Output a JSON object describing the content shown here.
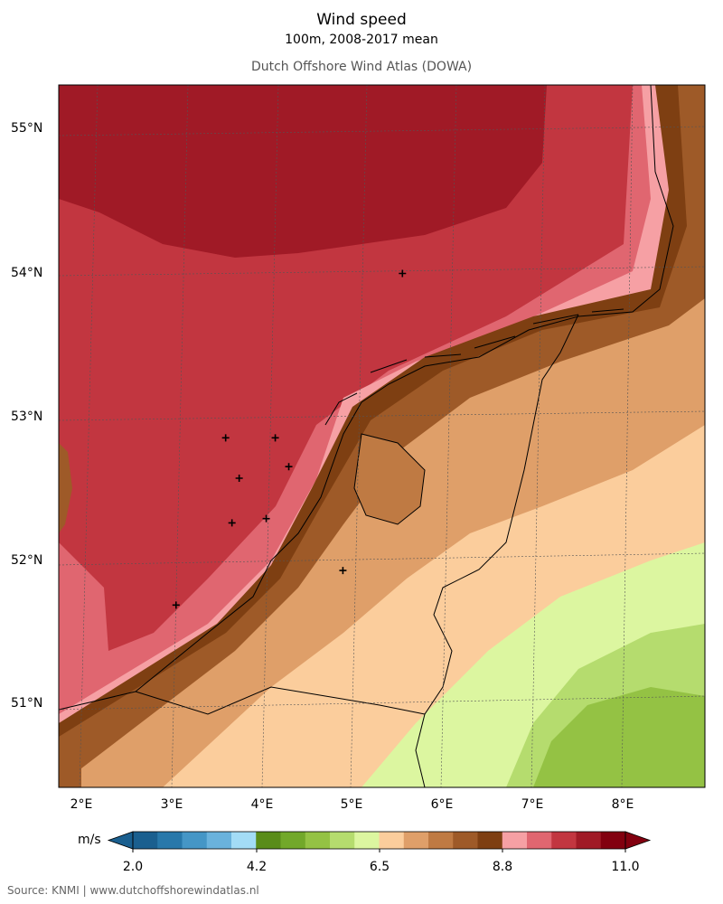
{
  "title": "Wind speed",
  "subtitle": "100m, 2008-2017 mean",
  "source_title": "Dutch Offshore Wind Atlas (DOWA)",
  "footer": "Source: KNMI | www.dutchoffshorewindatlas.nl",
  "axes": {
    "lat_labels": [
      "55°N",
      "54°N",
      "53°N",
      "52°N",
      "51°N"
    ],
    "lon_labels": [
      "2°E",
      "3°E",
      "4°E",
      "5°E",
      "6°E",
      "7°E",
      "8°E"
    ]
  },
  "colorbar": {
    "units": "m/s",
    "ticks": [
      "2.0",
      "4.2",
      "6.5",
      "8.8",
      "11.0"
    ],
    "colors": [
      "#1a5f8f",
      "#2878aa",
      "#4596c6",
      "#6ab2dc",
      "#a3dcf6",
      "#5a8c19",
      "#72a82a",
      "#94c244",
      "#b5dc6e",
      "#dcf6a0",
      "#fbcd9c",
      "#df9f69",
      "#bf7a43",
      "#9e5a28",
      "#7e3f12",
      "#f6a0a4",
      "#e06670",
      "#c23640",
      "#a01a26",
      "#82000f"
    ]
  },
  "map": {
    "colors": {
      "sea_far": "#a01a26",
      "sea_mid": "#c23640",
      "sea_near": "#e06670",
      "coast_band": "#f6a0a4",
      "coast_brown": "#7e3f12",
      "land_a": "#9e5a28",
      "land_b": "#bf7a43",
      "land_c": "#df9f69",
      "land_d": "#fbcd9c",
      "land_e": "#dcf6a0",
      "land_f": "#b5dc6e",
      "land_g": "#94c244"
    },
    "markers": [
      {
        "lon": 5.56,
        "lat": 54.0
      },
      {
        "lon": 3.6,
        "lat": 52.86
      },
      {
        "lon": 4.15,
        "lat": 52.86
      },
      {
        "lon": 3.75,
        "lat": 52.58
      },
      {
        "lon": 4.3,
        "lat": 52.66
      },
      {
        "lon": 3.67,
        "lat": 52.27
      },
      {
        "lon": 4.05,
        "lat": 52.3
      },
      {
        "lon": 4.9,
        "lat": 51.94
      },
      {
        "lon": 3.05,
        "lat": 51.7
      }
    ]
  }
}
